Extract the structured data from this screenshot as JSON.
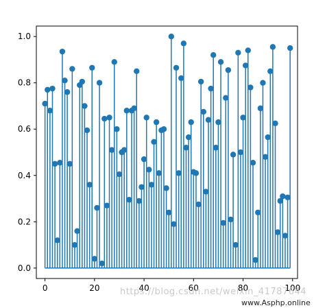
{
  "chart_data": {
    "type": "stem",
    "title": "",
    "xlabel": "",
    "ylabel": "",
    "xlim": [
      -3.5,
      102
    ],
    "ylim": [
      -0.045,
      1.045
    ],
    "xticks": [
      0,
      20,
      40,
      60,
      80,
      100
    ],
    "yticks": [
      0.0,
      0.2,
      0.4,
      0.6,
      0.8,
      1.0
    ],
    "xtick_labels": [
      "0",
      "20",
      "40",
      "60",
      "80",
      "100"
    ],
    "ytick_labels": [
      "0.0",
      "0.2",
      "0.4",
      "0.6",
      "0.8",
      "1.0"
    ],
    "color": "#1f77b4",
    "x": [
      0,
      1,
      2,
      3,
      4,
      5,
      6,
      7,
      8,
      9,
      10,
      11,
      12,
      13,
      14,
      15,
      16,
      17,
      18,
      19,
      20,
      21,
      22,
      23,
      24,
      25,
      26,
      27,
      28,
      29,
      30,
      31,
      32,
      33,
      34,
      35,
      36,
      37,
      38,
      39,
      40,
      41,
      42,
      43,
      44,
      45,
      46,
      47,
      48,
      49,
      50,
      51,
      52,
      53,
      54,
      55,
      56,
      57,
      58,
      59,
      60,
      61,
      62,
      63,
      64,
      65,
      66,
      67,
      68,
      69,
      70,
      71,
      72,
      73,
      74,
      75,
      76,
      77,
      78,
      79,
      80,
      81,
      82,
      83,
      84,
      85,
      86,
      87,
      88,
      89,
      90,
      91,
      92,
      93,
      94,
      95,
      96,
      97,
      98,
      99
    ],
    "y": [
      0.71,
      0.77,
      0.68,
      0.775,
      0.45,
      0.12,
      0.455,
      0.935,
      0.81,
      0.76,
      0.45,
      0.86,
      0.1,
      0.16,
      0.79,
      0.805,
      0.7,
      0.595,
      0.36,
      0.865,
      0.04,
      0.26,
      0.8,
      0.02,
      0.645,
      0.27,
      0.65,
      0.51,
      0.89,
      0.6,
      0.405,
      0.5,
      0.51,
      0.68,
      0.295,
      0.68,
      0.69,
      0.85,
      0.29,
      0.35,
      0.47,
      0.65,
      0.425,
      0.36,
      0.545,
      0.63,
      0.41,
      0.595,
      0.6,
      0.345,
      0.24,
      1.0,
      0.19,
      0.865,
      0.41,
      0.82,
      0.97,
      0.52,
      0.565,
      0.63,
      0.415,
      0.41,
      0.275,
      0.805,
      0.675,
      0.33,
      0.64,
      0.775,
      0.92,
      0.52,
      0.63,
      0.89,
      0.195,
      0.735,
      0.855,
      0.21,
      0.49,
      0.1,
      0.93,
      0.5,
      0.65,
      0.875,
      0.94,
      0.78,
      0.455,
      0.035,
      0.24,
      0.69,
      0.8,
      0.48,
      0.565,
      0.85,
      0.955,
      0.625,
      0.155,
      0.29,
      0.31,
      0.14,
      0.305,
      0.95
    ]
  },
  "watermark": {
    "text": "https://blog.csdn.net/weixin_41787644",
    "site": "www.Asphp.online"
  }
}
